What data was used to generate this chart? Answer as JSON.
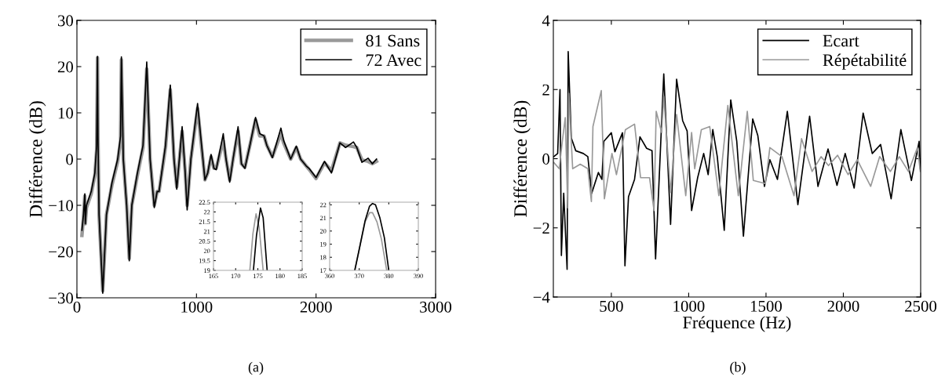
{
  "chart_data": [
    {
      "type": "line",
      "ylabel": "Différence (dB)",
      "xlim": [
        0,
        3000
      ],
      "xticks": [
        0,
        1000,
        2000,
        3000
      ],
      "ylim": [
        -30,
        30
      ],
      "yticks": [
        {
          "value": -30,
          "label": "−30"
        },
        {
          "value": -20,
          "label": "−20"
        },
        {
          "value": -10,
          "label": "−10"
        },
        0,
        10,
        20,
        30
      ],
      "legend": "top right",
      "grid": false,
      "annotations": [
        "(a)"
      ],
      "series": [
        {
          "name": "81 Sans",
          "color": "#999999",
          "x": [
            42,
            55,
            66,
            70,
            80,
            120,
            150,
            165,
            172,
            176,
            185,
            216,
            247,
            294,
            341,
            365,
            372,
            388,
            416,
            438,
            459,
            506,
            553,
            584,
            612,
            647,
            671,
            687,
            741,
            781,
            812,
            835,
            880,
            906,
            922,
            953,
            1009,
            1035,
            1071,
            1094,
            1122,
            1146,
            1165,
            1224,
            1247,
            1278,
            1306,
            1348,
            1376,
            1405,
            1447,
            1494,
            1529,
            1565,
            1588,
            1635,
            1706,
            1729,
            1788,
            1835,
            1871,
            1918,
            1941,
            2000,
            2071,
            2129,
            2200,
            2247,
            2313,
            2341,
            2384,
            2435,
            2471,
            2506
          ],
          "values": [
            -16.5,
            -12.5,
            -8,
            -14,
            -10.5,
            -7.5,
            -3.5,
            2,
            21.9,
            5,
            -12,
            -28.5,
            -12,
            -5.5,
            -0.5,
            4,
            21.5,
            0,
            -10,
            -21.5,
            -10,
            -3.5,
            2.5,
            19.5,
            0,
            -10,
            -7,
            -7,
            2.5,
            15,
            0,
            -6,
            6,
            -3,
            -10,
            0,
            11,
            4.5,
            -4.5,
            -3,
            0.5,
            -2,
            -2,
            4,
            0,
            -4.5,
            0,
            6,
            -1,
            -1.8,
            3,
            8.5,
            5,
            5,
            3,
            0.5,
            5.5,
            3.5,
            0,
            2.5,
            0,
            -1.5,
            -2.2,
            -4.2,
            -0.8,
            -2.5,
            3.5,
            3,
            2.7,
            2.5,
            -0.2,
            -0.5,
            -1,
            -0.5
          ]
        },
        {
          "name": "72 Avec",
          "color": "#000000",
          "x": [
            42,
            55,
            66,
            70,
            80,
            120,
            150,
            165,
            172,
            176,
            185,
            216,
            247,
            294,
            341,
            365,
            372,
            388,
            416,
            438,
            459,
            506,
            553,
            584,
            612,
            647,
            671,
            687,
            741,
            781,
            812,
            835,
            880,
            906,
            922,
            953,
            1009,
            1035,
            1071,
            1094,
            1122,
            1146,
            1165,
            1224,
            1247,
            1278,
            1306,
            1348,
            1376,
            1405,
            1447,
            1494,
            1529,
            1565,
            1588,
            1635,
            1706,
            1729,
            1788,
            1835,
            1871,
            1918,
            1941,
            2000,
            2071,
            2129,
            2200,
            2247,
            2313,
            2341,
            2384,
            2435,
            2471,
            2506
          ],
          "values": [
            -15.4,
            -12,
            -7.5,
            -14,
            -10,
            -7,
            -3,
            3,
            22.2,
            5,
            -12,
            -29,
            -12,
            -5,
            0,
            5,
            22.1,
            0,
            -10,
            -22,
            -10,
            -3,
            3,
            21,
            0,
            -10.5,
            -7,
            -7,
            3,
            16,
            0,
            -6.5,
            7,
            -3,
            -11,
            0,
            12,
            5,
            -4.5,
            -3,
            1,
            -2,
            -2.3,
            5.5,
            0,
            -5,
            0,
            7,
            -1,
            -2,
            3,
            9,
            5.5,
            5,
            3,
            0.3,
            6.7,
            4,
            0,
            2.8,
            0,
            -1.5,
            -2,
            -4,
            -0.5,
            -3,
            3.5,
            2.5,
            3.7,
            2.5,
            -0.7,
            0.2,
            -1,
            0
          ]
        }
      ]
    },
    {
      "type": "line",
      "xlabel": "Fréquence (Hz)",
      "ylabel": "Différence (dB)",
      "xlim": [
        125,
        2500
      ],
      "xticks": [
        500,
        1000,
        1500,
        2000,
        2500
      ],
      "ylim": [
        -4,
        4
      ],
      "yticks": [
        {
          "value": -4,
          "label": "−4"
        },
        {
          "value": -2,
          "label": "−2"
        },
        0,
        2,
        4
      ],
      "legend": "top right",
      "grid": false,
      "annotations": [
        "(b)"
      ],
      "series": [
        {
          "name": "Ecart",
          "color": "#000000",
          "x": [
            128,
            153,
            168,
            177,
            192,
            202,
            214,
            221,
            241,
            270,
            319,
            348,
            373,
            416,
            439,
            451,
            500,
            523,
            572,
            588,
            611,
            650,
            685,
            728,
            763,
            786,
            809,
            839,
            883,
            922,
            961,
            990,
            1019,
            1058,
            1097,
            1126,
            1156,
            1185,
            1230,
            1272,
            1311,
            1354,
            1414,
            1447,
            1490,
            1525,
            1574,
            1638,
            1706,
            1782,
            1836,
            1901,
            1959,
            2012,
            2070,
            2128,
            2187,
            2241,
            2309,
            2372,
            2440,
            2490,
            2498
          ],
          "values": [
            0.06,
            0.15,
            2.0,
            -2.8,
            -1.0,
            -2.0,
            -3.2,
            3.1,
            0.6,
            0.23,
            0.15,
            0.06,
            -1.0,
            -0.4,
            -0.6,
            0.5,
            0.75,
            0.2,
            0.75,
            -3.1,
            -1.1,
            -0.6,
            0.63,
            0.3,
            0.23,
            -2.9,
            -0.6,
            2.45,
            -1.9,
            2.3,
            1.1,
            0.8,
            -1.5,
            -0.55,
            0.15,
            -0.46,
            0.84,
            0.06,
            -2.07,
            1.7,
            0.5,
            -2.24,
            1.15,
            0.67,
            -0.8,
            -0.03,
            -0.6,
            1.37,
            -1.33,
            1.23,
            -0.8,
            0.28,
            -0.77,
            0.15,
            -0.85,
            1.32,
            0.15,
            0.41,
            -1.16,
            0.84,
            -0.63,
            0.5,
            -0.29
          ]
        },
        {
          "name": "Répétabilité",
          "color": "#999999",
          "x": [
            128,
            163,
            183,
            202,
            218,
            225,
            250,
            299,
            348,
            371,
            381,
            435,
            455,
            504,
            533,
            591,
            650,
            689,
            747,
            776,
            790,
            825,
            839,
            883,
            922,
            981,
            1019,
            1039,
            1082,
            1136,
            1195,
            1253,
            1321,
            1379,
            1418,
            1496,
            1525,
            1603,
            1681,
            1730,
            1798,
            1856,
            1904,
            1963,
            2031,
            2090,
            2177,
            2235,
            2304,
            2362,
            2421,
            2479,
            2498
          ],
          "values": [
            -0.11,
            -0.29,
            0.5,
            1.19,
            -1.42,
            1.89,
            -0.29,
            -0.16,
            -0.29,
            -1.24,
            0.93,
            1.97,
            -1.16,
            0.15,
            -0.46,
            0.84,
            1.0,
            -0.55,
            -0.55,
            -1.5,
            1.37,
            0.76,
            1.8,
            -0.98,
            1.28,
            -1.07,
            0.76,
            -0.29,
            0.84,
            0.93,
            -1.07,
            1.54,
            -1.07,
            1.37,
            -0.63,
            -0.72,
            0.32,
            0.06,
            -1.07,
            0.58,
            -0.37,
            0.06,
            -0.2,
            0.1,
            -0.46,
            -0.03,
            -0.8,
            0.06,
            -0.37,
            0.06,
            -0.37,
            0.32,
            -0.37
          ]
        }
      ]
    },
    {
      "type": "line",
      "xlim": [
        165,
        185
      ],
      "xticks": [
        165,
        170,
        175,
        180,
        185
      ],
      "ylim": [
        19,
        22.5
      ],
      "yticks": [
        19,
        19.5,
        20,
        20.5,
        21,
        21.5,
        22,
        22.5
      ],
      "grid": false,
      "series": [
        {
          "color": "#999999",
          "x": [
            173.2,
            173.9,
            174.6,
            175.3,
            176.2
          ],
          "values": [
            19,
            20.9,
            21.9,
            21.2,
            19
          ]
        },
        {
          "color": "#000000",
          "x": [
            174.0,
            174.7,
            175.6,
            176.2,
            177.1
          ],
          "values": [
            19,
            20.8,
            22.2,
            21.7,
            19
          ]
        }
      ]
    },
    {
      "type": "line",
      "xlim": [
        360,
        390
      ],
      "xticks": [
        360,
        370,
        380,
        390
      ],
      "ylim": [
        17,
        22.2
      ],
      "yticks": [
        17,
        18,
        19,
        20,
        21,
        22
      ],
      "grid": false,
      "series": [
        {
          "color": "#999999",
          "x": [
            368.5,
            370,
            372,
            373.5,
            374.5,
            376,
            377.5,
            379.3
          ],
          "values": [
            17,
            18.6,
            20.7,
            21.4,
            21.4,
            20.7,
            19.4,
            17
          ]
        },
        {
          "color": "#000000",
          "x": [
            368.5,
            370,
            372,
            373.5,
            374.5,
            375.5,
            377,
            378.5,
            380
          ],
          "values": [
            17,
            18.6,
            20.8,
            21.9,
            22.1,
            22.0,
            21,
            19.5,
            17
          ]
        }
      ]
    }
  ]
}
